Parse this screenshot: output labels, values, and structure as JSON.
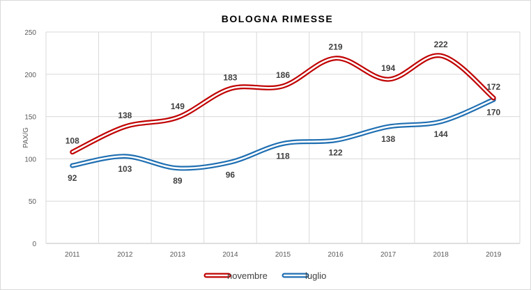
{
  "chart_data": {
    "type": "line",
    "title": "BOLOGNA RIMESSE",
    "xlabel": "",
    "ylabel": "PAX/G",
    "categories": [
      "2011",
      "2012",
      "2013",
      "2014",
      "2015",
      "2016",
      "2017",
      "2018",
      "2019"
    ],
    "ylim": [
      0,
      250
    ],
    "yticks": [
      0,
      50,
      100,
      150,
      200,
      250
    ],
    "grid": true,
    "smooth": true,
    "legend_position": "bottom",
    "series": [
      {
        "name": "novembre",
        "color": "#c00000",
        "values": [
          108,
          138,
          149,
          183,
          186,
          219,
          194,
          222,
          172
        ],
        "label_position": "above"
      },
      {
        "name": "luglio",
        "color": "#1f6fb2",
        "values": [
          92,
          103,
          89,
          96,
          118,
          122,
          138,
          144,
          170
        ],
        "label_position": "below"
      }
    ]
  }
}
